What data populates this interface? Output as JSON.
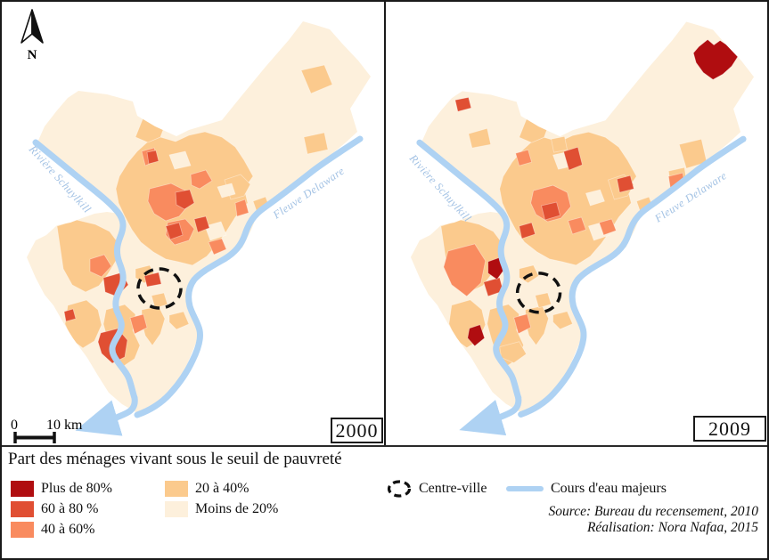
{
  "figure": {
    "north_label": "N",
    "scale": {
      "zero": "0",
      "ten_km": "10 km"
    }
  },
  "maps": [
    {
      "year": "2000",
      "rivers": {
        "schuylkill": "Rivière Schuylkill",
        "delaware": "Fleuve Delaware"
      }
    },
    {
      "year": "2009",
      "rivers": {
        "schuylkill": "Rivière Schuylkill",
        "delaware": "Fleuve Delaware"
      }
    }
  ],
  "legend": {
    "title": "Part des ménages vivant sous le seuil de pauvreté",
    "classes": [
      {
        "label": "Plus de 80%",
        "color": "#b00d10"
      },
      {
        "label": "60 à 80 %",
        "color": "#e04f33"
      },
      {
        "label": "40 à 60%",
        "color": "#f98b5f"
      },
      {
        "label": "20 à 40%",
        "color": "#fbca8d"
      },
      {
        "label": "Moins de 20%",
        "color": "#fdf0dc"
      }
    ],
    "centre_ville_label": "Centre-ville",
    "cours_eau_label": "Cours d'eau majeurs",
    "river_color": "#aed2f3",
    "river_label_color": "#a3c2e4",
    "circle_color": "#111111"
  },
  "credits": {
    "source": "Source: Bureau du recensement, 2010",
    "realisation": "Réalisation: Nora Nafaa, 2015"
  }
}
